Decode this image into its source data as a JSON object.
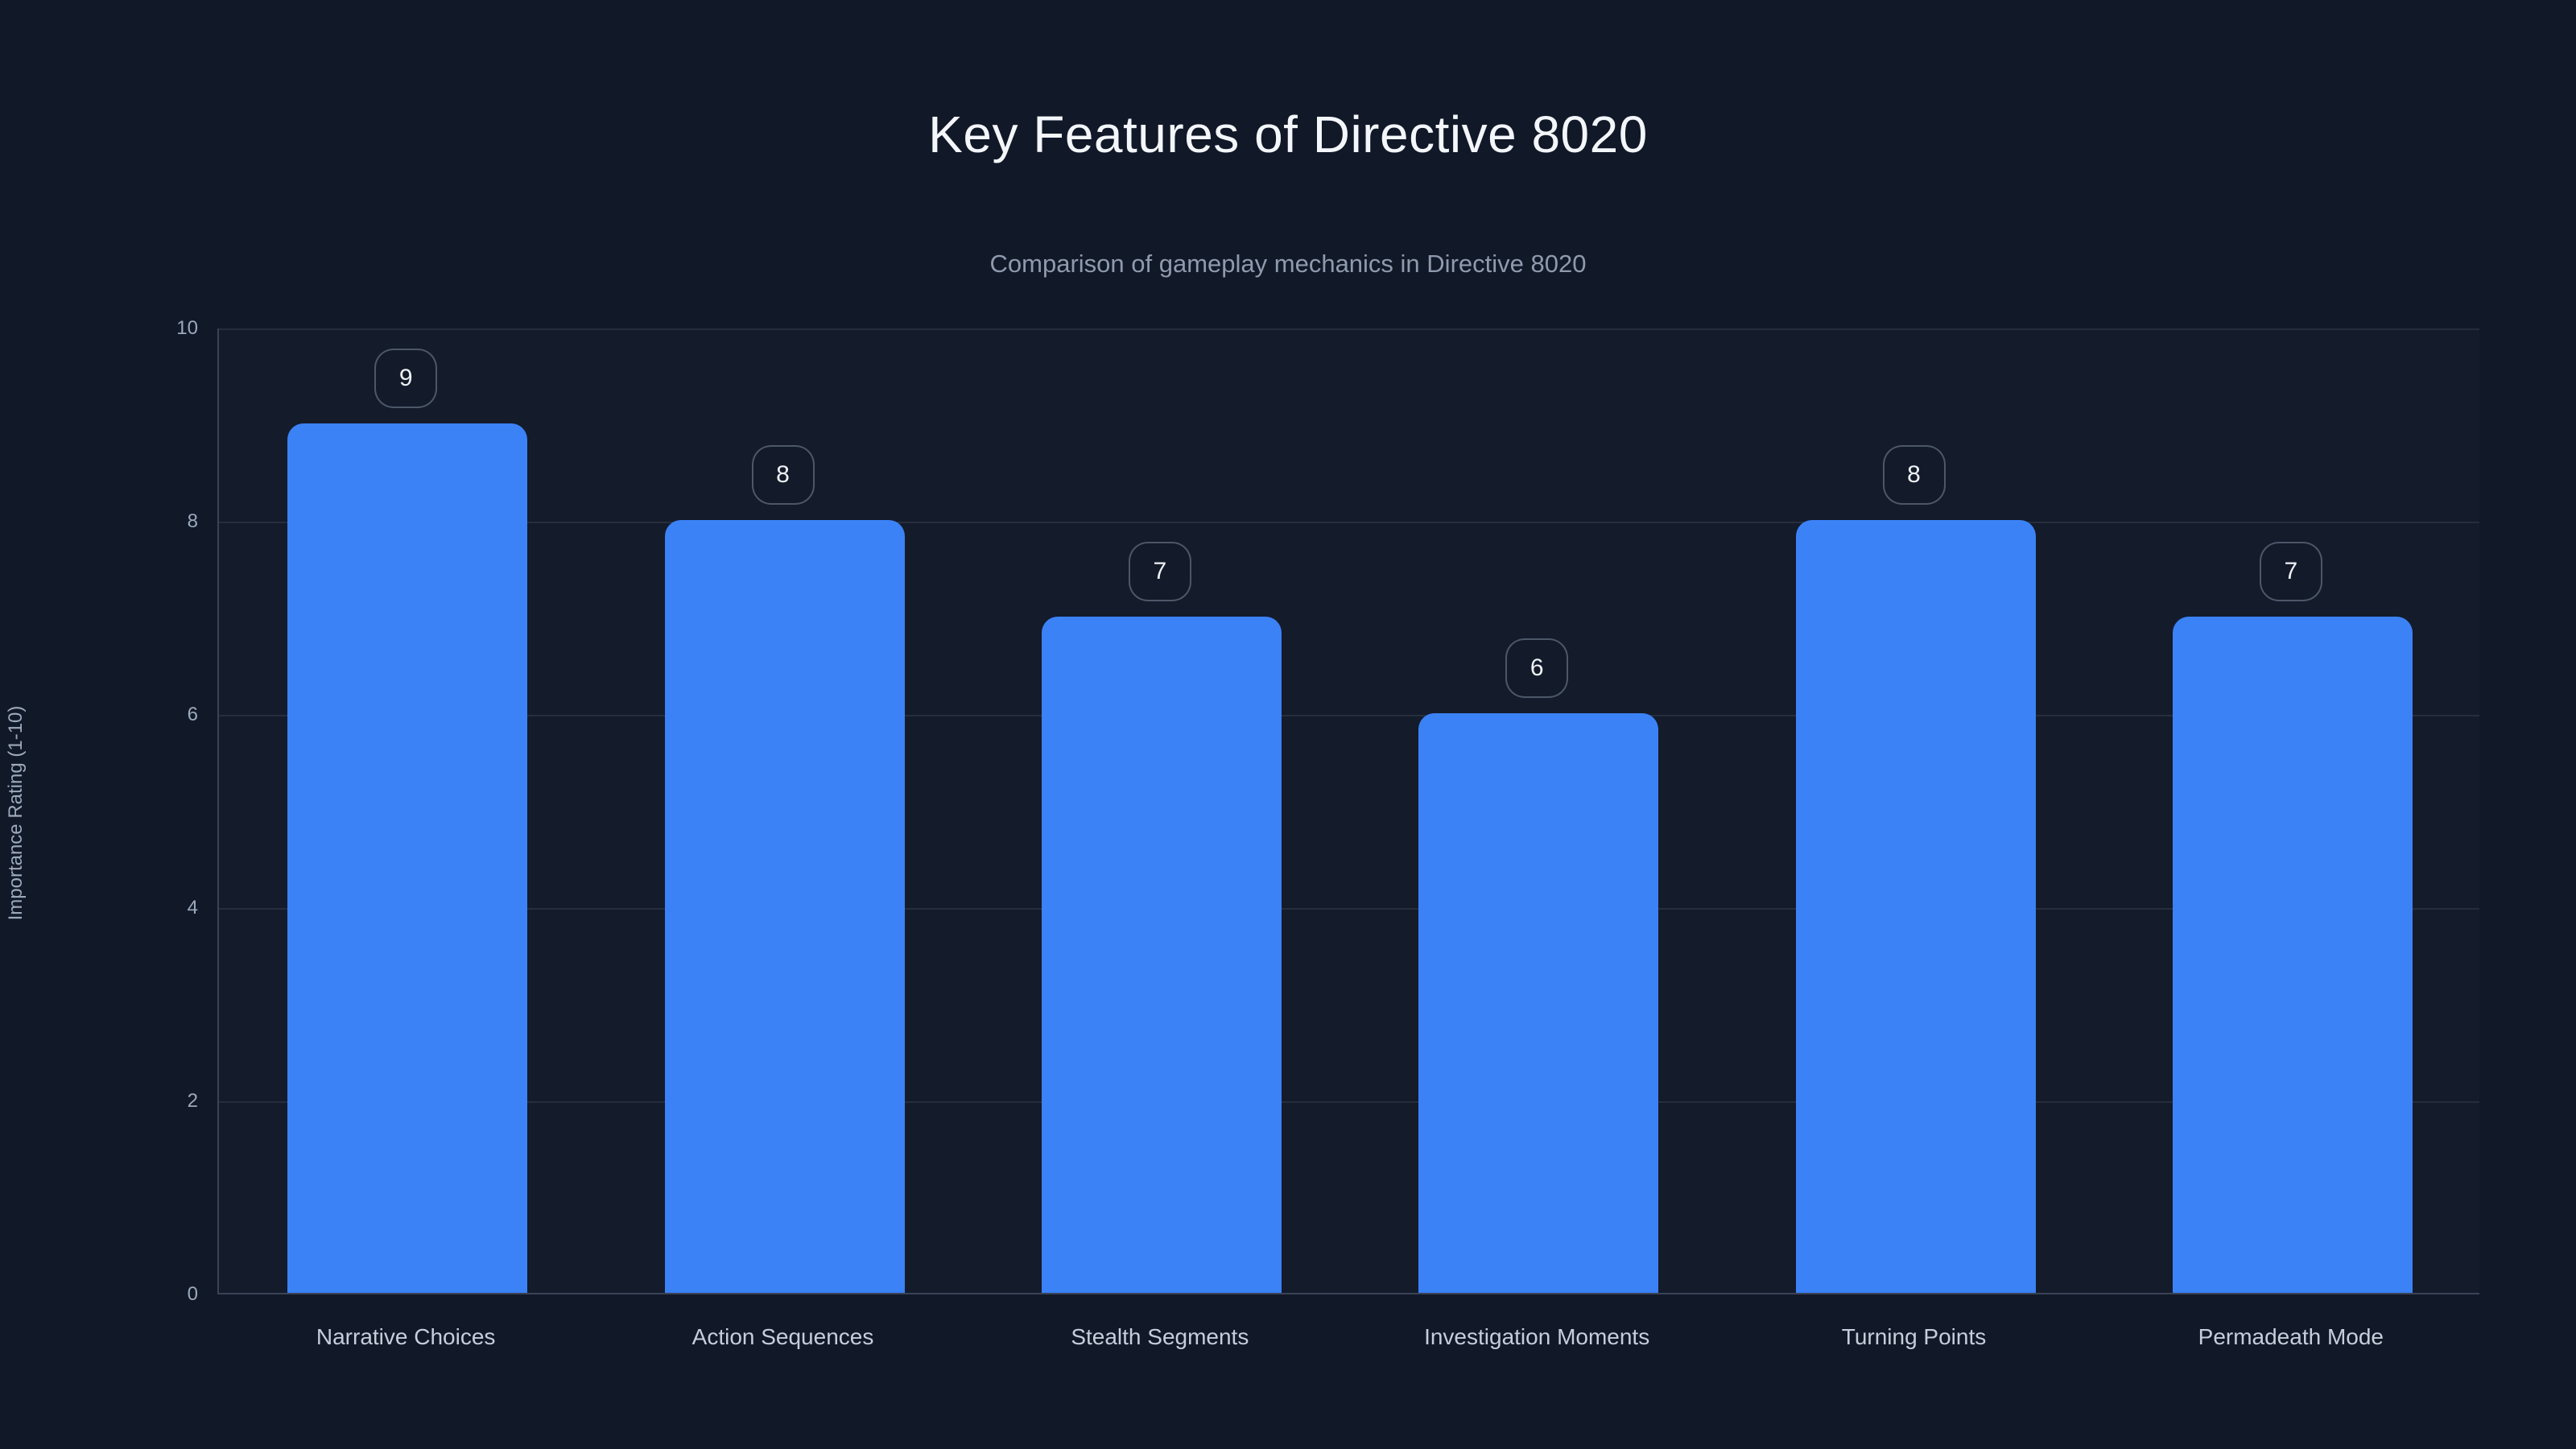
{
  "header": {
    "title": "Key Features of Directive 8020",
    "subtitle": "Comparison of gameplay mechanics in Directive 8020"
  },
  "chart_data": {
    "type": "bar",
    "title": "Key Features of Directive 8020",
    "subtitle": "Comparison of gameplay mechanics in Directive 8020",
    "categories": [
      "Narrative Choices",
      "Action Sequences",
      "Stealth Segments",
      "Investigation Moments",
      "Turning Points",
      "Permadeath Mode"
    ],
    "values": [
      9,
      8,
      7,
      6,
      8,
      7
    ],
    "value_labels": [
      "9",
      "8",
      "7",
      "6",
      "8",
      "7"
    ],
    "xlabel": "",
    "ylabel": "Importance Rating (1-10)",
    "ylim": [
      0,
      10
    ],
    "yticks": [
      0,
      2,
      4,
      6,
      8,
      10
    ],
    "grid": true,
    "legend": false,
    "value_label_style": "rounded-badge"
  },
  "colors": {
    "background": "#111828",
    "bar": "#3b82f6",
    "title_text": "#f3f6fa",
    "subtitle_text": "#8e9aad",
    "axis_tick_text": "#9ca9bc",
    "category_text": "#c5ceda",
    "badge_text": "#eef2f7",
    "gridline": "rgba(148,163,184,0.14)",
    "axis_line": "rgba(148,163,184,0.30)"
  }
}
